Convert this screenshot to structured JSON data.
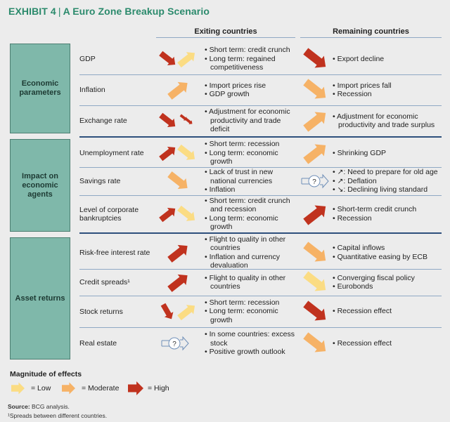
{
  "title": {
    "exhibit": "EXHIBIT 4",
    "text": "A Euro Zone Breakup Scenario"
  },
  "columns": {
    "exiting": "Exiting countries",
    "remaining": "Remaining countries"
  },
  "colors": {
    "high": "#c0321e",
    "moderate": "#f6b266",
    "low": "#fbdc83",
    "category": "#7fb8aa",
    "title": "#2b8a6c"
  },
  "sections": [
    {
      "category": "Economic parameters",
      "rows": [
        {
          "label": "GDP",
          "exiting_arrows": [
            {
              "dir": "down",
              "mag": "high"
            },
            {
              "dir": "up",
              "mag": "low"
            }
          ],
          "exiting": [
            "Short term: credit crunch",
            "Long term: regained competitiveness"
          ],
          "remaining_arrows": [
            {
              "dir": "down",
              "mag": "high"
            }
          ],
          "remaining": [
            "Export decline"
          ]
        },
        {
          "label": "Inflation",
          "exiting_arrows": [
            {
              "dir": "up",
              "mag": "moderate"
            }
          ],
          "exiting": [
            "Import prices rise",
            "GDP growth"
          ],
          "remaining_arrows": [
            {
              "dir": "down",
              "mag": "moderate"
            }
          ],
          "remaining": [
            "Import prices fall",
            "Recession"
          ]
        },
        {
          "label": "Exchange rate",
          "exiting_arrows": [
            {
              "dir": "down",
              "mag": "high"
            },
            {
              "dir": "down-double-small",
              "mag": "high"
            }
          ],
          "exiting": [
            "Adjustment for economic productivity and trade deficit"
          ],
          "remaining_arrows": [
            {
              "dir": "up",
              "mag": "moderate"
            }
          ],
          "remaining": [
            "Adjustment for economic productivity and trade surplus"
          ]
        }
      ]
    },
    {
      "category": "Impact on economic agents",
      "rows": [
        {
          "label": "Unemployment rate",
          "exiting_arrows": [
            {
              "dir": "up",
              "mag": "high"
            },
            {
              "dir": "down",
              "mag": "low"
            }
          ],
          "exiting": [
            "Short term: recession",
            "Long term: economic growth"
          ],
          "remaining_arrows": [
            {
              "dir": "up",
              "mag": "moderate"
            }
          ],
          "remaining": [
            "Shrinking GDP"
          ]
        },
        {
          "label": "Savings rate",
          "exiting_arrows": [
            {
              "dir": "down",
              "mag": "moderate"
            }
          ],
          "exiting": [
            "Lack of trust in new national currencies",
            "Inflation"
          ],
          "remaining_arrows": [
            {
              "dir": "unknown",
              "mag": "none"
            }
          ],
          "remaining": [
            "↗: Need to prepare for old age",
            "↗: Deflation",
            "↘: Declining living standard"
          ]
        },
        {
          "label": "Level of corporate bankruptcies",
          "exiting_arrows": [
            {
              "dir": "up",
              "mag": "high"
            },
            {
              "dir": "down",
              "mag": "low"
            }
          ],
          "exiting": [
            "Short term: credit crunch and recession",
            "Long term: economic growth"
          ],
          "remaining_arrows": [
            {
              "dir": "up",
              "mag": "high"
            }
          ],
          "remaining": [
            "Short-term credit crunch",
            "Recession"
          ]
        }
      ]
    },
    {
      "category": "Asset returns",
      "rows": [
        {
          "label": "Risk-free interest rate",
          "exiting_arrows": [
            {
              "dir": "up",
              "mag": "high"
            }
          ],
          "exiting": [
            "Flight to quality in other countries",
            "Inflation and currency devaluation"
          ],
          "remaining_arrows": [
            {
              "dir": "down",
              "mag": "moderate"
            }
          ],
          "remaining": [
            "Capital inflows",
            "Quantitative easing by ECB"
          ]
        },
        {
          "label": "Credit spreads¹",
          "exiting_arrows": [
            {
              "dir": "up",
              "mag": "high"
            }
          ],
          "exiting": [
            "Flight to quality in other countries"
          ],
          "remaining_arrows": [
            {
              "dir": "down",
              "mag": "low"
            }
          ],
          "remaining": [
            "Converging fiscal policy",
            "Eurobonds"
          ]
        },
        {
          "label": "Stock returns",
          "exiting_arrows": [
            {
              "dir": "down-steep",
              "mag": "high"
            },
            {
              "dir": "up",
              "mag": "low"
            }
          ],
          "exiting": [
            "Short term: recession",
            "Long term: economic growth"
          ],
          "remaining_arrows": [
            {
              "dir": "down",
              "mag": "high"
            }
          ],
          "remaining": [
            "Recession effect"
          ]
        },
        {
          "label": "Real estate",
          "exiting_arrows": [
            {
              "dir": "unknown",
              "mag": "none"
            }
          ],
          "exiting": [
            "In some countries: excess stock",
            "Positive growth outlook"
          ],
          "remaining_arrows": [
            {
              "dir": "down",
              "mag": "moderate"
            }
          ],
          "remaining": [
            "Recession effect"
          ]
        }
      ]
    }
  ],
  "legend": {
    "title": "Magnitude of effects",
    "items": [
      {
        "mag": "low",
        "label": "= Low"
      },
      {
        "mag": "moderate",
        "label": "= Moderate"
      },
      {
        "mag": "high",
        "label": "= High"
      }
    ]
  },
  "source": {
    "label": "Source:",
    "text": "BCG analysis."
  },
  "footnote": "¹Spreads between different countries."
}
